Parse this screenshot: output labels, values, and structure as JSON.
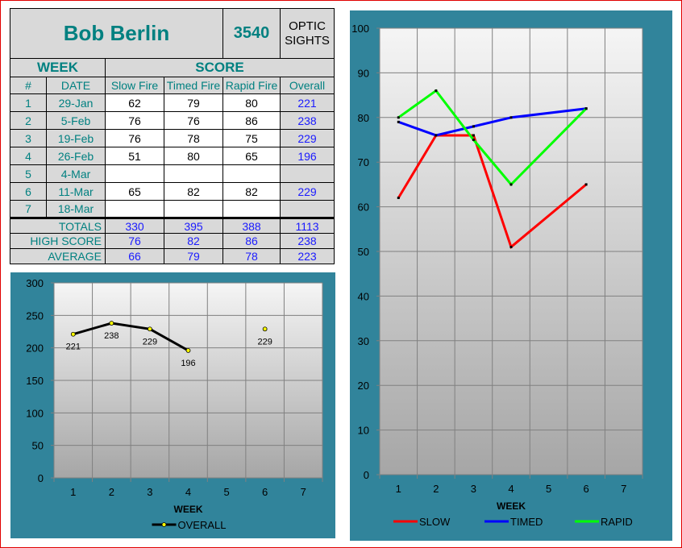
{
  "shooter": {
    "name": "Bob Berlin",
    "number": "3540",
    "category": "OPTIC SIGHTS"
  },
  "headers": {
    "week": "WEEK",
    "score": "SCORE",
    "num": "#",
    "date": "DATE",
    "slow": "Slow Fire",
    "timed": "Timed Fire",
    "rapid": "Rapid Fire",
    "overall": "Overall"
  },
  "rows": [
    {
      "num": "1",
      "date": "29-Jan",
      "slow": "62",
      "timed": "79",
      "rapid": "80",
      "overall": "221"
    },
    {
      "num": "2",
      "date": "5-Feb",
      "slow": "76",
      "timed": "76",
      "rapid": "86",
      "overall": "238"
    },
    {
      "num": "3",
      "date": "19-Feb",
      "slow": "76",
      "timed": "78",
      "rapid": "75",
      "overall": "229"
    },
    {
      "num": "4",
      "date": "26-Feb",
      "slow": "51",
      "timed": "80",
      "rapid": "65",
      "overall": "196"
    },
    {
      "num": "5",
      "date": "4-Mar",
      "slow": "",
      "timed": "",
      "rapid": "",
      "overall": ""
    },
    {
      "num": "6",
      "date": "11-Mar",
      "slow": "65",
      "timed": "82",
      "rapid": "82",
      "overall": "229"
    },
    {
      "num": "7",
      "date": "18-Mar",
      "slow": "",
      "timed": "",
      "rapid": "",
      "overall": ""
    }
  ],
  "summary": [
    {
      "label": "TOTALS",
      "slow": "330",
      "timed": "395",
      "rapid": "388",
      "overall": "1113"
    },
    {
      "label": "HIGH SCORE",
      "slow": "76",
      "timed": "82",
      "rapid": "86",
      "overall": "238"
    },
    {
      "label": "AVERAGE",
      "slow": "66",
      "timed": "79",
      "rapid": "78",
      "overall": "223"
    }
  ],
  "chart_data": [
    {
      "type": "line",
      "categories": [
        "1",
        "2",
        "3",
        "4",
        "5",
        "6",
        "7"
      ],
      "xlabel": "WEEK",
      "ylim": [
        0,
        300
      ],
      "yticks": [
        0,
        50,
        100,
        150,
        200,
        250,
        300
      ],
      "grid": true,
      "legend": "bottom",
      "data_labels": true,
      "series": [
        {
          "name": "OVERALL",
          "color": "#000000",
          "marker_color": "#ffff00",
          "values": [
            221,
            238,
            229,
            196,
            null,
            229,
            null
          ]
        }
      ]
    },
    {
      "type": "line",
      "categories": [
        "1",
        "2",
        "3",
        "4",
        "5",
        "6",
        "7"
      ],
      "xlabel": "WEEK",
      "ylim": [
        0,
        100
      ],
      "yticks": [
        0,
        10,
        20,
        30,
        40,
        50,
        60,
        70,
        80,
        90,
        100
      ],
      "grid": true,
      "legend": "bottom",
      "connect_gaps": true,
      "series": [
        {
          "name": "SLOW",
          "color": "#ff0000",
          "values": [
            62,
            76,
            76,
            51,
            null,
            65,
            null
          ]
        },
        {
          "name": "TIMED",
          "color": "#0000ff",
          "values": [
            79,
            76,
            78,
            80,
            null,
            82,
            null
          ]
        },
        {
          "name": "RAPID",
          "color": "#00ff00",
          "values": [
            80,
            86,
            75,
            65,
            null,
            82,
            null
          ]
        }
      ]
    }
  ]
}
